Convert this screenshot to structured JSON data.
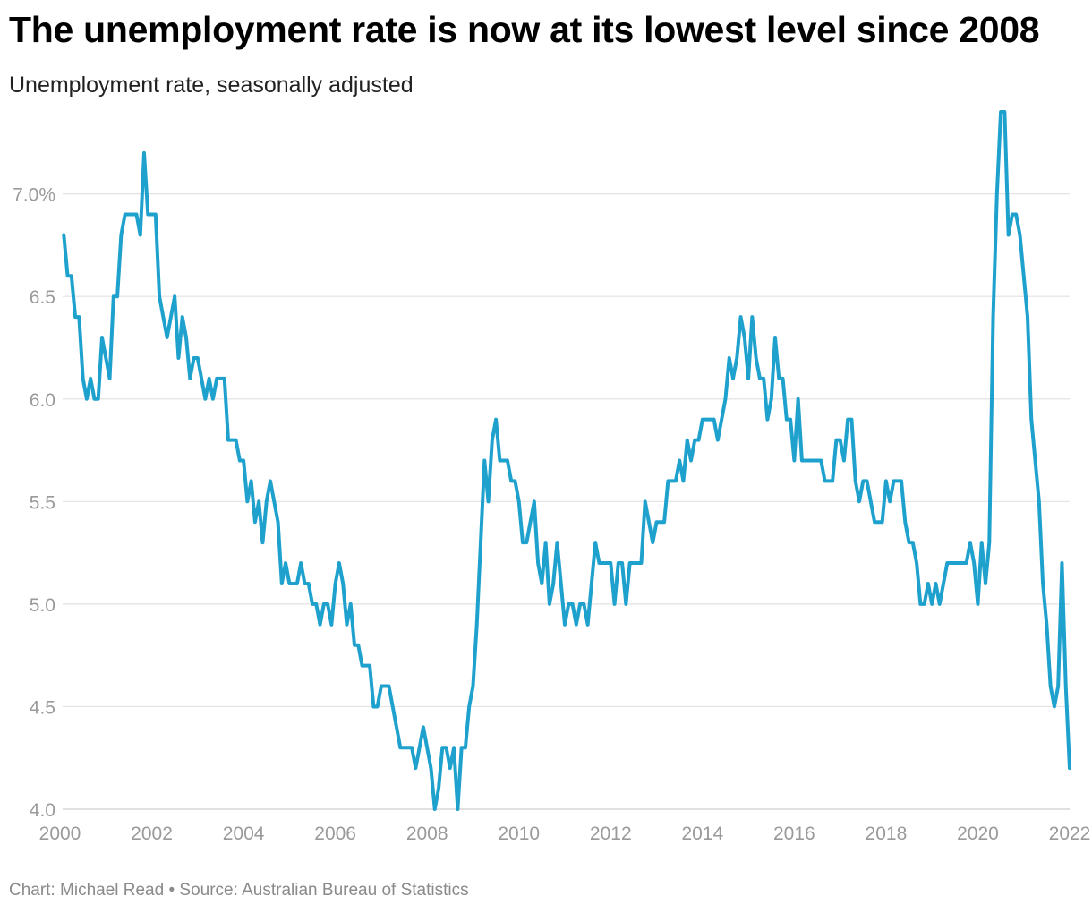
{
  "title": "The unemployment rate is now at its lowest level since 2008",
  "subtitle": "Unemployment rate, seasonally adjusted",
  "footer": {
    "credit": "Chart: Michael Read",
    "separator": "•",
    "source": "Source: Australian Bureau of Statistics"
  },
  "colors": {
    "line": "#1ea1cd",
    "grid": "#e2e2e2",
    "axis_label": "#9a9a9a"
  },
  "chart_data": {
    "type": "line",
    "title": "The unemployment rate is now at its lowest level since 2008",
    "subtitle": "Unemployment rate, seasonally adjusted",
    "xlabel": "",
    "ylabel": "",
    "xlim": [
      2000,
      2022
    ],
    "ylim": [
      4.0,
      7.4
    ],
    "x_ticks": [
      2000,
      2002,
      2004,
      2006,
      2008,
      2010,
      2012,
      2014,
      2016,
      2018,
      2020,
      2022
    ],
    "x_tick_labels": [
      "2000",
      "2002",
      "2004",
      "2006",
      "2008",
      "2010",
      "2012",
      "2014",
      "2016",
      "2018",
      "2020",
      "2022"
    ],
    "y_ticks": [
      4.0,
      4.5,
      5.0,
      5.5,
      6.0,
      6.5,
      7.0
    ],
    "y_tick_labels": [
      "4.0",
      "4.5",
      "5.0",
      "5.5",
      "6.0",
      "6.5",
      "7.0%"
    ],
    "grid": true,
    "legend": "none",
    "series": [
      {
        "x": [
          "2000-02",
          "2000-03",
          "2000-04",
          "2000-05",
          "2000-06",
          "2000-07",
          "2000-08",
          "2000-09",
          "2000-10",
          "2000-11",
          "2000-12",
          "2001-01",
          "2001-02",
          "2001-03",
          "2001-04",
          "2001-05",
          "2001-06",
          "2001-07",
          "2001-08",
          "2001-09",
          "2001-10",
          "2001-11",
          "2001-12",
          "2002-01",
          "2002-02",
          "2002-03",
          "2002-04",
          "2002-05",
          "2002-06",
          "2002-07",
          "2002-08",
          "2002-09",
          "2002-10",
          "2002-11",
          "2002-12",
          "2003-01",
          "2003-02",
          "2003-03",
          "2003-04",
          "2003-05",
          "2003-06",
          "2003-07",
          "2003-08",
          "2003-09",
          "2003-10",
          "2003-11",
          "2003-12",
          "2004-01",
          "2004-02",
          "2004-03",
          "2004-04",
          "2004-05",
          "2004-06",
          "2004-07",
          "2004-08",
          "2004-09",
          "2004-10",
          "2004-11",
          "2004-12",
          "2005-01",
          "2005-02",
          "2005-03",
          "2005-04",
          "2005-05",
          "2005-06",
          "2005-07",
          "2005-08",
          "2005-09",
          "2005-10",
          "2005-11",
          "2005-12",
          "2006-01",
          "2006-02",
          "2006-03",
          "2006-04",
          "2006-05",
          "2006-06",
          "2006-07",
          "2006-08",
          "2006-09",
          "2006-10",
          "2006-11",
          "2006-12",
          "2007-01",
          "2007-02",
          "2007-03",
          "2007-04",
          "2007-05",
          "2007-06",
          "2007-07",
          "2007-08",
          "2007-09",
          "2007-10",
          "2007-11",
          "2007-12",
          "2008-01",
          "2008-02",
          "2008-03",
          "2008-04",
          "2008-05",
          "2008-06",
          "2008-07",
          "2008-08",
          "2008-09",
          "2008-10",
          "2008-11",
          "2008-12",
          "2009-01",
          "2009-02",
          "2009-03",
          "2009-04",
          "2009-05",
          "2009-06",
          "2009-07",
          "2009-08",
          "2009-09",
          "2009-10",
          "2009-11",
          "2009-12",
          "2010-01",
          "2010-02",
          "2010-03",
          "2010-04",
          "2010-05",
          "2010-06",
          "2010-07",
          "2010-08",
          "2010-09",
          "2010-10",
          "2010-11",
          "2010-12",
          "2011-01",
          "2011-02",
          "2011-03",
          "2011-04",
          "2011-05",
          "2011-06",
          "2011-07",
          "2011-08",
          "2011-09",
          "2011-10",
          "2011-11",
          "2011-12",
          "2012-01",
          "2012-02",
          "2012-03",
          "2012-04",
          "2012-05",
          "2012-06",
          "2012-07",
          "2012-08",
          "2012-09",
          "2012-10",
          "2012-11",
          "2012-12",
          "2013-01",
          "2013-02",
          "2013-03",
          "2013-04",
          "2013-05",
          "2013-06",
          "2013-07",
          "2013-08",
          "2013-09",
          "2013-10",
          "2013-11",
          "2013-12",
          "2014-01",
          "2014-02",
          "2014-03",
          "2014-04",
          "2014-05",
          "2014-06",
          "2014-07",
          "2014-08",
          "2014-09",
          "2014-10",
          "2014-11",
          "2014-12",
          "2015-01",
          "2015-02",
          "2015-03",
          "2015-04",
          "2015-05",
          "2015-06",
          "2015-07",
          "2015-08",
          "2015-09",
          "2015-10",
          "2015-11",
          "2015-12",
          "2016-01",
          "2016-02",
          "2016-03",
          "2016-04",
          "2016-05",
          "2016-06",
          "2016-07",
          "2016-08",
          "2016-09",
          "2016-10",
          "2016-11",
          "2016-12",
          "2017-01",
          "2017-02",
          "2017-03",
          "2017-04",
          "2017-05",
          "2017-06",
          "2017-07",
          "2017-08",
          "2017-09",
          "2017-10",
          "2017-11",
          "2017-12",
          "2018-01",
          "2018-02",
          "2018-03",
          "2018-04",
          "2018-05",
          "2018-06",
          "2018-07",
          "2018-08",
          "2018-09",
          "2018-10",
          "2018-11",
          "2018-12",
          "2019-01",
          "2019-02",
          "2019-03",
          "2019-04",
          "2019-05",
          "2019-06",
          "2019-07",
          "2019-08",
          "2019-09",
          "2019-10",
          "2019-11",
          "2019-12",
          "2020-01",
          "2020-02",
          "2020-03",
          "2020-04",
          "2020-05",
          "2020-06",
          "2020-07",
          "2020-08",
          "2020-09",
          "2020-10",
          "2020-11",
          "2020-12",
          "2021-01",
          "2021-02",
          "2021-03",
          "2021-04",
          "2021-05",
          "2021-06",
          "2021-07",
          "2021-08",
          "2021-09",
          "2021-10",
          "2021-11",
          "2021-12",
          "2022-01"
        ],
        "y": [
          6.8,
          6.6,
          6.6,
          6.4,
          6.4,
          6.1,
          6.0,
          6.1,
          6.0,
          6.0,
          6.3,
          6.2,
          6.1,
          6.5,
          6.5,
          6.8,
          6.9,
          6.9,
          6.9,
          6.9,
          6.8,
          7.2,
          6.9,
          6.9,
          6.9,
          6.5,
          6.4,
          6.3,
          6.4,
          6.5,
          6.2,
          6.4,
          6.3,
          6.1,
          6.2,
          6.2,
          6.1,
          6.0,
          6.1,
          6.0,
          6.1,
          6.1,
          6.1,
          5.8,
          5.8,
          5.8,
          5.7,
          5.7,
          5.5,
          5.6,
          5.4,
          5.5,
          5.3,
          5.5,
          5.6,
          5.5,
          5.4,
          5.1,
          5.2,
          5.1,
          5.1,
          5.1,
          5.2,
          5.1,
          5.1,
          5.0,
          5.0,
          4.9,
          5.0,
          5.0,
          4.9,
          5.1,
          5.2,
          5.1,
          4.9,
          5.0,
          4.8,
          4.8,
          4.7,
          4.7,
          4.7,
          4.5,
          4.5,
          4.6,
          4.6,
          4.6,
          4.5,
          4.4,
          4.3,
          4.3,
          4.3,
          4.3,
          4.2,
          4.3,
          4.4,
          4.3,
          4.2,
          4.0,
          4.1,
          4.3,
          4.3,
          4.2,
          4.3,
          4.0,
          4.3,
          4.3,
          4.5,
          4.6,
          4.9,
          5.3,
          5.7,
          5.5,
          5.8,
          5.9,
          5.7,
          5.7,
          5.7,
          5.6,
          5.6,
          5.5,
          5.3,
          5.3,
          5.4,
          5.5,
          5.2,
          5.1,
          5.3,
          5.0,
          5.1,
          5.3,
          5.1,
          4.9,
          5.0,
          5.0,
          4.9,
          5.0,
          5.0,
          4.9,
          5.1,
          5.3,
          5.2,
          5.2,
          5.2,
          5.2,
          5.0,
          5.2,
          5.2,
          5.0,
          5.2,
          5.2,
          5.2,
          5.2,
          5.5,
          5.4,
          5.3,
          5.4,
          5.4,
          5.4,
          5.6,
          5.6,
          5.6,
          5.7,
          5.6,
          5.8,
          5.7,
          5.8,
          5.8,
          5.9,
          5.9,
          5.9,
          5.9,
          5.8,
          5.9,
          6.0,
          6.2,
          6.1,
          6.2,
          6.4,
          6.3,
          6.1,
          6.4,
          6.2,
          6.1,
          6.1,
          5.9,
          6.0,
          6.3,
          6.1,
          6.1,
          5.9,
          5.9,
          5.7,
          6.0,
          5.7,
          5.7,
          5.7,
          5.7,
          5.7,
          5.7,
          5.6,
          5.6,
          5.6,
          5.8,
          5.8,
          5.7,
          5.9,
          5.9,
          5.6,
          5.5,
          5.6,
          5.6,
          5.5,
          5.4,
          5.4,
          5.4,
          5.6,
          5.5,
          5.6,
          5.6,
          5.6,
          5.4,
          5.3,
          5.3,
          5.2,
          5.0,
          5.0,
          5.1,
          5.0,
          5.1,
          5.0,
          5.1,
          5.2,
          5.2,
          5.2,
          5.2,
          5.2,
          5.2,
          5.3,
          5.2,
          5.0,
          5.3,
          5.1,
          5.3,
          6.4,
          7.0,
          7.4,
          7.4,
          6.8,
          6.9,
          6.9,
          6.8,
          6.6,
          6.4,
          5.9,
          5.7,
          5.5,
          5.1,
          4.9,
          4.6,
          4.5,
          4.6,
          5.2,
          4.6,
          4.2
        ]
      }
    ]
  }
}
